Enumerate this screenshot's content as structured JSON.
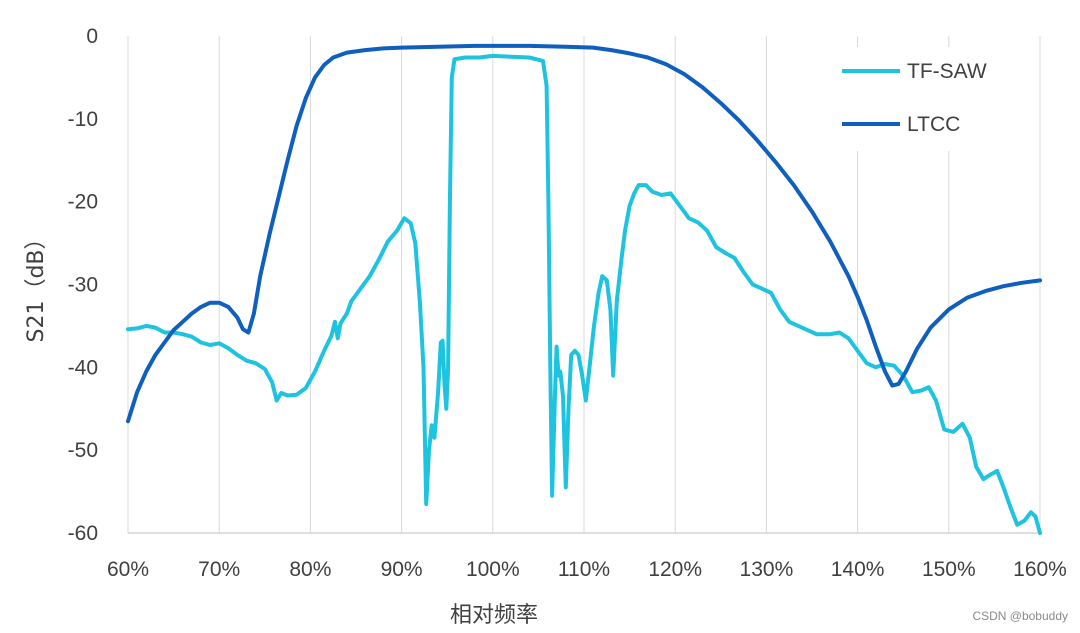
{
  "chart_data": {
    "type": "line",
    "title": "",
    "xlabel": "相对频率",
    "ylabel": "S21（dB）",
    "xlim": [
      60,
      160
    ],
    "ylim": [
      -60,
      0
    ],
    "x_ticks": [
      60,
      70,
      80,
      90,
      100,
      110,
      120,
      130,
      140,
      150,
      160
    ],
    "x_tick_labels": [
      "60%",
      "70%",
      "80%",
      "90%",
      "100%",
      "110%",
      "120%",
      "130%",
      "140%",
      "150%",
      "160%"
    ],
    "y_ticks": [
      0,
      -10,
      -20,
      -30,
      -40,
      -50,
      -60
    ],
    "y_tick_labels": [
      "0",
      "-10",
      "-20",
      "-30",
      "-40",
      "-50",
      "-60"
    ],
    "grid": "vertical",
    "legend_position": "top-right",
    "series": [
      {
        "name": "TF-SAW",
        "color": "#1EC3E0",
        "points": [
          [
            60,
            -35.4
          ],
          [
            61,
            -35.3
          ],
          [
            62,
            -35.0
          ],
          [
            63,
            -35.2
          ],
          [
            64,
            -35.8
          ],
          [
            65,
            -35.8
          ],
          [
            66,
            -36.0
          ],
          [
            67,
            -36.3
          ],
          [
            68,
            -37.0
          ],
          [
            69,
            -37.3
          ],
          [
            70,
            -37.1
          ],
          [
            71,
            -37.7
          ],
          [
            72,
            -38.5
          ],
          [
            73,
            -39.2
          ],
          [
            74,
            -39.5
          ],
          [
            75,
            -40.2
          ],
          [
            75.8,
            -41.8
          ],
          [
            76.3,
            -44.0
          ],
          [
            76.8,
            -43.1
          ],
          [
            77.5,
            -43.4
          ],
          [
            78.5,
            -43.3
          ],
          [
            79.5,
            -42.5
          ],
          [
            80.5,
            -40.5
          ],
          [
            81.5,
            -38.0
          ],
          [
            82.3,
            -36.2
          ],
          [
            82.7,
            -34.5
          ],
          [
            83.0,
            -36.5
          ],
          [
            83.3,
            -34.7
          ],
          [
            84,
            -33.5
          ],
          [
            84.5,
            -32.0
          ],
          [
            85.5,
            -30.5
          ],
          [
            86.5,
            -29.0
          ],
          [
            87.5,
            -27.0
          ],
          [
            88.5,
            -24.8
          ],
          [
            89.5,
            -23.5
          ],
          [
            90.3,
            -22.0
          ],
          [
            91.0,
            -22.6
          ],
          [
            91.5,
            -25.0
          ],
          [
            92.0,
            -32.0
          ],
          [
            92.4,
            -40.0
          ],
          [
            92.7,
            -56.5
          ],
          [
            93.0,
            -50.0
          ],
          [
            93.3,
            -47.0
          ],
          [
            93.6,
            -48.5
          ],
          [
            94.0,
            -43.0
          ],
          [
            94.3,
            -37.0
          ],
          [
            94.5,
            -36.8
          ],
          [
            94.7,
            -42.0
          ],
          [
            94.9,
            -45.0
          ],
          [
            95.1,
            -40.0
          ],
          [
            95.3,
            -20.0
          ],
          [
            95.5,
            -5.0
          ],
          [
            95.8,
            -2.8
          ],
          [
            97,
            -2.6
          ],
          [
            98.5,
            -2.6
          ],
          [
            100,
            -2.4
          ],
          [
            102,
            -2.5
          ],
          [
            104,
            -2.6
          ],
          [
            105.5,
            -3.0
          ],
          [
            105.9,
            -6.0
          ],
          [
            106.1,
            -20.0
          ],
          [
            106.3,
            -40.0
          ],
          [
            106.5,
            -55.5
          ],
          [
            106.8,
            -44.0
          ],
          [
            107.0,
            -37.5
          ],
          [
            107.2,
            -41.0
          ],
          [
            107.4,
            -40.5
          ],
          [
            107.7,
            -43.5
          ],
          [
            108.0,
            -54.5
          ],
          [
            108.3,
            -45.0
          ],
          [
            108.6,
            -38.5
          ],
          [
            109.0,
            -38.0
          ],
          [
            109.4,
            -38.5
          ],
          [
            109.8,
            -41.0
          ],
          [
            110.2,
            -44.0
          ],
          [
            110.6,
            -40.0
          ],
          [
            111.1,
            -35.0
          ],
          [
            111.6,
            -31.0
          ],
          [
            112.0,
            -29.0
          ],
          [
            112.5,
            -29.5
          ],
          [
            112.9,
            -33.0
          ],
          [
            113.2,
            -41.0
          ],
          [
            113.6,
            -32.0
          ],
          [
            114.1,
            -27.0
          ],
          [
            114.5,
            -23.5
          ],
          [
            115.0,
            -20.5
          ],
          [
            115.5,
            -19.0
          ],
          [
            116.0,
            -18.0
          ],
          [
            116.8,
            -18.0
          ],
          [
            117.5,
            -18.8
          ],
          [
            118.5,
            -19.2
          ],
          [
            119.5,
            -19.0
          ],
          [
            120.5,
            -20.5
          ],
          [
            121.5,
            -22.0
          ],
          [
            122.5,
            -22.5
          ],
          [
            123.5,
            -23.5
          ],
          [
            124.5,
            -25.5
          ],
          [
            125.5,
            -26.2
          ],
          [
            126.5,
            -26.8
          ],
          [
            127.5,
            -28.5
          ],
          [
            128.5,
            -30.0
          ],
          [
            129.5,
            -30.5
          ],
          [
            130.5,
            -31.0
          ],
          [
            131.5,
            -33.0
          ],
          [
            132.5,
            -34.5
          ],
          [
            133.5,
            -35.0
          ],
          [
            134.5,
            -35.5
          ],
          [
            135.5,
            -36.0
          ],
          [
            137,
            -36.0
          ],
          [
            138,
            -35.8
          ],
          [
            139,
            -36.5
          ],
          [
            140,
            -38.0
          ],
          [
            141,
            -39.5
          ],
          [
            142,
            -40.0
          ],
          [
            143,
            -39.6
          ],
          [
            144,
            -39.8
          ],
          [
            145,
            -41.0
          ],
          [
            146,
            -43.0
          ],
          [
            147,
            -42.8
          ],
          [
            147.8,
            -42.4
          ],
          [
            148.6,
            -44.0
          ],
          [
            149.5,
            -47.5
          ],
          [
            150.5,
            -47.8
          ],
          [
            151.5,
            -46.8
          ],
          [
            152.3,
            -48.5
          ],
          [
            153.0,
            -52.0
          ],
          [
            153.8,
            -53.5
          ],
          [
            154.5,
            -53.0
          ],
          [
            155.3,
            -52.5
          ],
          [
            156.0,
            -54.5
          ],
          [
            156.8,
            -57.0
          ],
          [
            157.5,
            -59.0
          ],
          [
            158.3,
            -58.5
          ],
          [
            159.0,
            -57.5
          ],
          [
            159.5,
            -58.0
          ],
          [
            160,
            -60.0
          ]
        ]
      },
      {
        "name": "LTCC",
        "color": "#0F5FBE",
        "points": [
          [
            60,
            -46.5
          ],
          [
            61,
            -43.0
          ],
          [
            62,
            -40.5
          ],
          [
            63,
            -38.5
          ],
          [
            64,
            -37.0
          ],
          [
            65,
            -35.5
          ],
          [
            66,
            -34.5
          ],
          [
            67,
            -33.5
          ],
          [
            68,
            -32.7
          ],
          [
            69,
            -32.2
          ],
          [
            70,
            -32.2
          ],
          [
            71,
            -32.7
          ],
          [
            72,
            -34.0
          ],
          [
            72.6,
            -35.4
          ],
          [
            73.2,
            -35.8
          ],
          [
            73.8,
            -33.5
          ],
          [
            74.5,
            -29.0
          ],
          [
            75.5,
            -24.0
          ],
          [
            76.5,
            -19.5
          ],
          [
            77.5,
            -15.0
          ],
          [
            78.5,
            -10.8
          ],
          [
            79.5,
            -7.5
          ],
          [
            80.5,
            -5.0
          ],
          [
            81.5,
            -3.5
          ],
          [
            82.5,
            -2.6
          ],
          [
            84,
            -2.0
          ],
          [
            86,
            -1.7
          ],
          [
            88,
            -1.5
          ],
          [
            90,
            -1.4
          ],
          [
            94,
            -1.3
          ],
          [
            98,
            -1.2
          ],
          [
            104,
            -1.2
          ],
          [
            108,
            -1.3
          ],
          [
            111,
            -1.4
          ],
          [
            113,
            -1.7
          ],
          [
            115,
            -2.1
          ],
          [
            117,
            -2.6
          ],
          [
            119,
            -3.4
          ],
          [
            121,
            -4.6
          ],
          [
            123,
            -6.2
          ],
          [
            125,
            -8.1
          ],
          [
            127,
            -10.2
          ],
          [
            129,
            -12.6
          ],
          [
            131,
            -15.2
          ],
          [
            133,
            -18.0
          ],
          [
            135,
            -21.2
          ],
          [
            137,
            -24.8
          ],
          [
            139,
            -29.0
          ],
          [
            140,
            -31.5
          ],
          [
            141,
            -34.3
          ],
          [
            142,
            -37.5
          ],
          [
            143,
            -40.5
          ],
          [
            143.8,
            -42.2
          ],
          [
            144.5,
            -42.0
          ],
          [
            145.3,
            -40.5
          ],
          [
            146.5,
            -37.8
          ],
          [
            148,
            -35.2
          ],
          [
            150,
            -33.0
          ],
          [
            152,
            -31.6
          ],
          [
            154,
            -30.8
          ],
          [
            156,
            -30.2
          ],
          [
            158,
            -29.8
          ],
          [
            160,
            -29.5
          ]
        ]
      }
    ]
  },
  "watermark": "CSDN @bobuddy"
}
